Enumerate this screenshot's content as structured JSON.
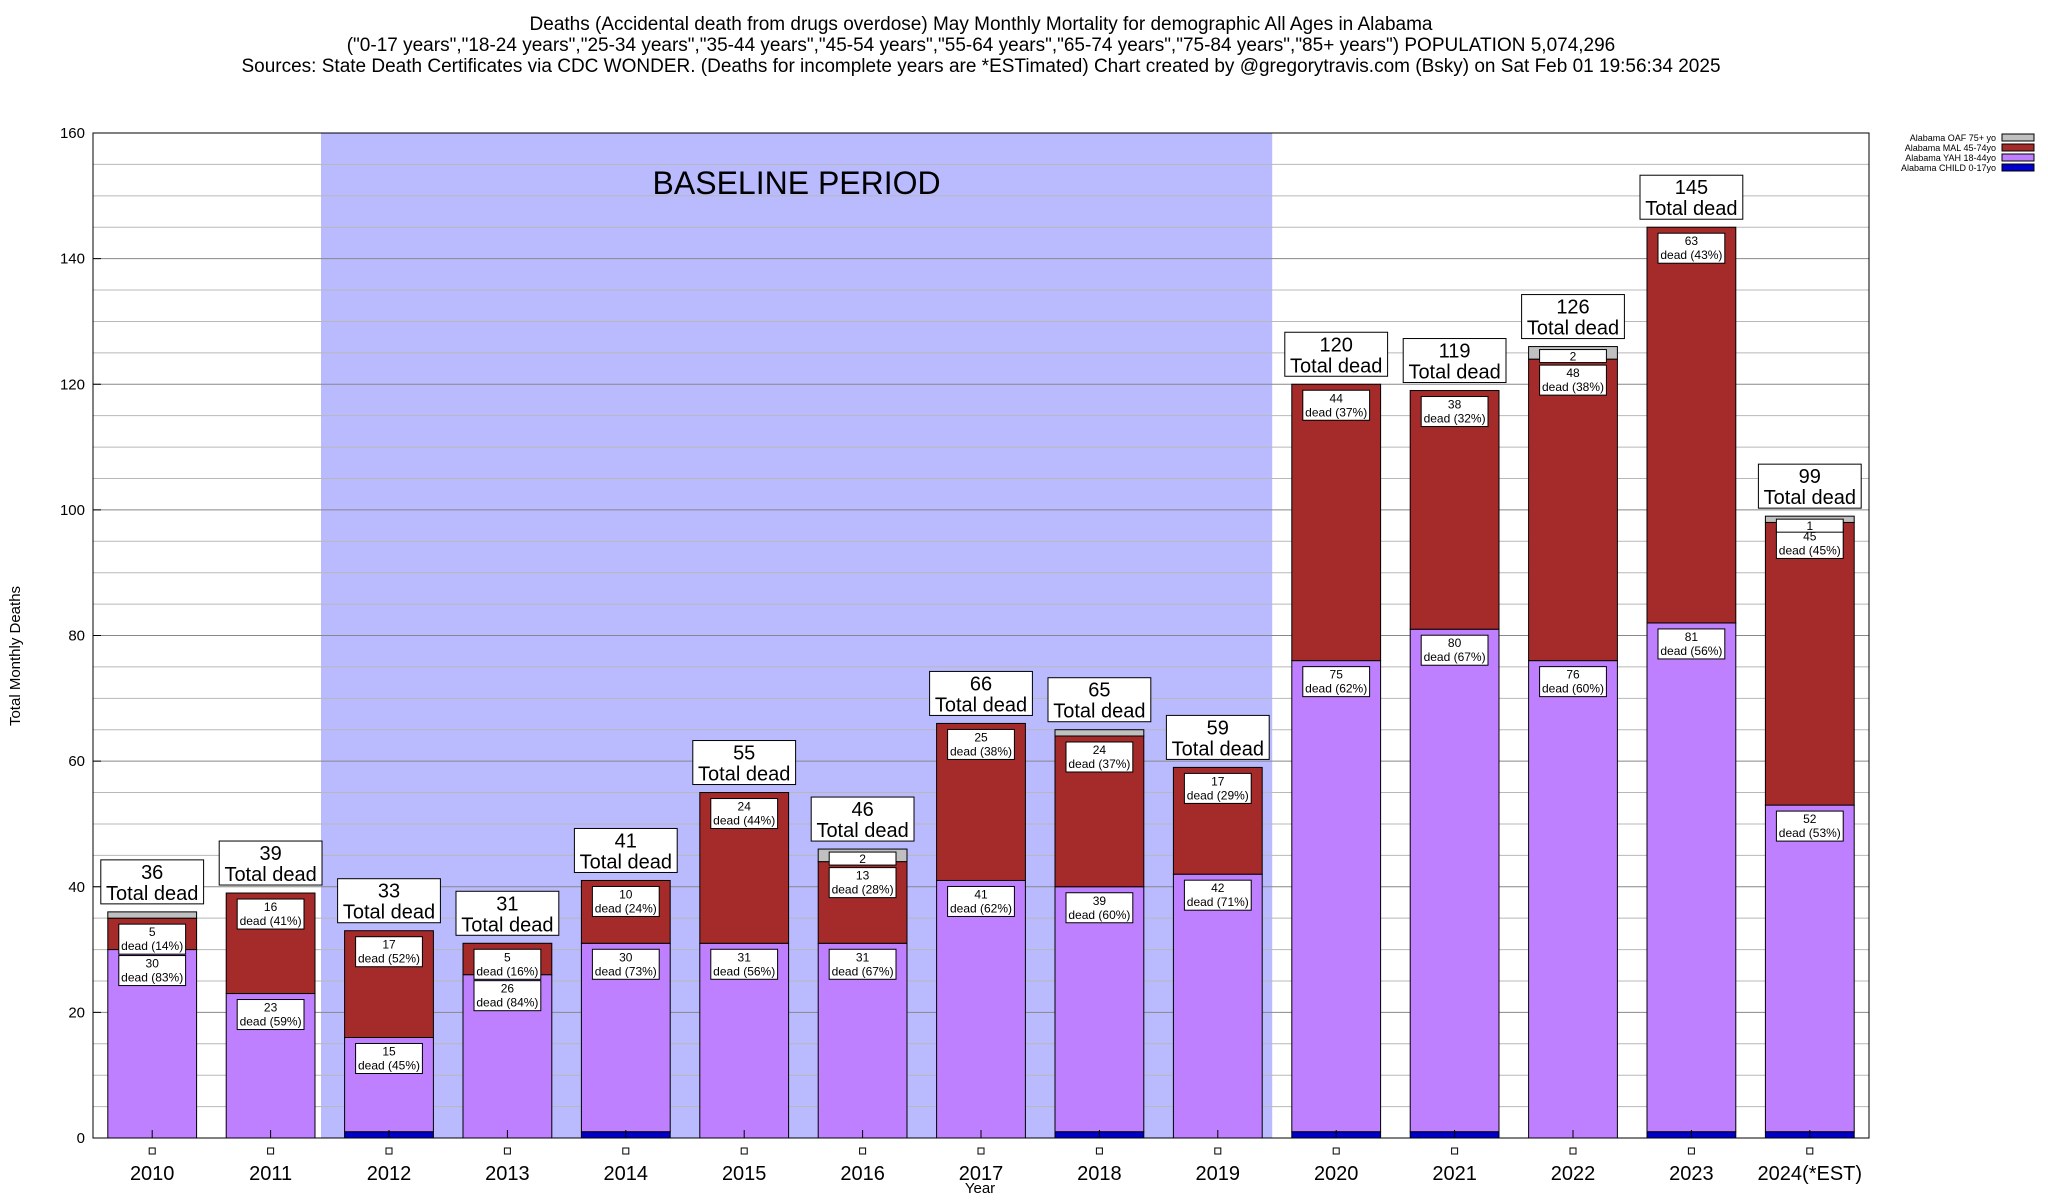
{
  "chart_data": {
    "type": "bar",
    "stacked": true,
    "title_lines": [
      "Deaths (Accidental death from drugs overdose) May Monthly Mortality for demographic All Ages in Alabama",
      "(\"0-17 years\",\"18-24 years\",\"25-34 years\",\"35-44 years\",\"45-54 years\",\"55-64 years\",\"65-74 years\",\"75-84 years\",\"85+ years\") POPULATION 5,074,296",
      "Sources: State Death Certificates via CDC WONDER. (Deaths for incomplete years are *ESTimated)               Chart created by @gregorytravis.com (Bsky) on Sat Feb 01 19:56:34 2025"
    ],
    "xlabel": "Year",
    "ylabel": "Total Monthly Deaths",
    "ylim": [
      0,
      160
    ],
    "yticks": [
      0,
      20,
      40,
      60,
      80,
      100,
      120,
      140,
      160
    ],
    "grid": true,
    "legend_position": "top-right",
    "baseline_label": "BASELINE PERIOD",
    "baseline_range": [
      "2012",
      "2019"
    ],
    "categories": [
      "2010",
      "2011",
      "2012",
      "2013",
      "2014",
      "2015",
      "2016",
      "2017",
      "2018",
      "2019",
      "2020",
      "2021",
      "2022",
      "2023",
      "2024(*EST)"
    ],
    "totals": [
      36,
      39,
      33,
      31,
      41,
      55,
      46,
      66,
      65,
      59,
      120,
      119,
      126,
      145,
      99
    ],
    "total_suffix": "Total dead",
    "series": [
      {
        "name": "Alabama CHILD 0-17yo",
        "color": "#0000cc",
        "values": [
          0,
          0,
          1,
          0,
          1,
          0,
          0,
          0,
          1,
          0,
          1,
          1,
          0,
          1,
          1
        ]
      },
      {
        "name": "Alabama YAH 18-44yo",
        "color": "#bf80ff",
        "values": [
          30,
          23,
          15,
          26,
          30,
          31,
          31,
          41,
          39,
          42,
          75,
          80,
          76,
          81,
          52
        ],
        "labels": [
          "30|dead (83%)",
          "23|dead (59%)",
          "15|dead (45%)",
          "26|dead (84%)",
          "30|dead (73%)",
          "31|dead (56%)",
          "31|dead (67%)",
          "41|dead (62%)",
          "39|dead (60%)",
          "42|dead (71%)",
          "75|dead (62%)",
          "80|dead (67%)",
          "76|dead (60%)",
          "81|dead (56%)",
          "52|dead (53%)"
        ]
      },
      {
        "name": "Alabama MAL 45-74yo",
        "color": "#a52a2a",
        "values": [
          5,
          16,
          17,
          5,
          10,
          24,
          13,
          25,
          24,
          17,
          44,
          38,
          48,
          63,
          45
        ],
        "labels": [
          "5|dead (14%)",
          "16|dead (41%)",
          "17|dead (52%)",
          "5|dead (16%)",
          "10|dead (24%)",
          "24|dead (44%)",
          "13|dead (28%)",
          "25|dead (38%)",
          "24|dead (37%)",
          "17|dead (29%)",
          "44|dead (37%)",
          "38|dead (32%)",
          "48|dead (38%)",
          "63|dead (43%)",
          "45|dead (45%)"
        ]
      },
      {
        "name": "Alabama OAF 75+ yo",
        "color": "#c0c0c0",
        "values": [
          1,
          0,
          0,
          0,
          0,
          0,
          2,
          0,
          1,
          0,
          0,
          0,
          2,
          0,
          1
        ],
        "labels": [
          "",
          "",
          "",
          "",
          "",
          "",
          "2",
          "",
          "",
          "",
          "",
          "",
          "2",
          "",
          "1"
        ]
      }
    ],
    "legend_order": [
      "Alabama OAF 75+ yo",
      "Alabama MAL 45-74yo",
      "Alabama YAH 18-44yo",
      "Alabama CHILD 0-17yo"
    ]
  }
}
